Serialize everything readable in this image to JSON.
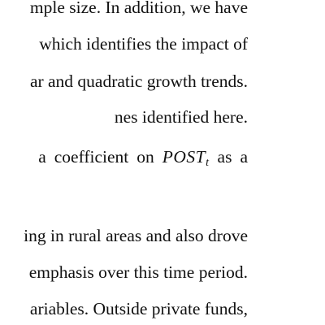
{
  "document": {
    "lines": [
      "mple size.  In addition, we have",
      "which identifies the impact of",
      "ar and quadratic growth trends.",
      "nes identified here.",
      "",
      "ing in rural areas and also drove",
      "emphasis over this time period.",
      "ariables. Outside private funds,"
    ],
    "line5": {
      "pre_1": "a",
      "pre_2": "coefficient",
      "pre_3": "on",
      "math_base": "POST",
      "math_sub": "t",
      "post_1": "as",
      "post_2": "a"
    }
  }
}
